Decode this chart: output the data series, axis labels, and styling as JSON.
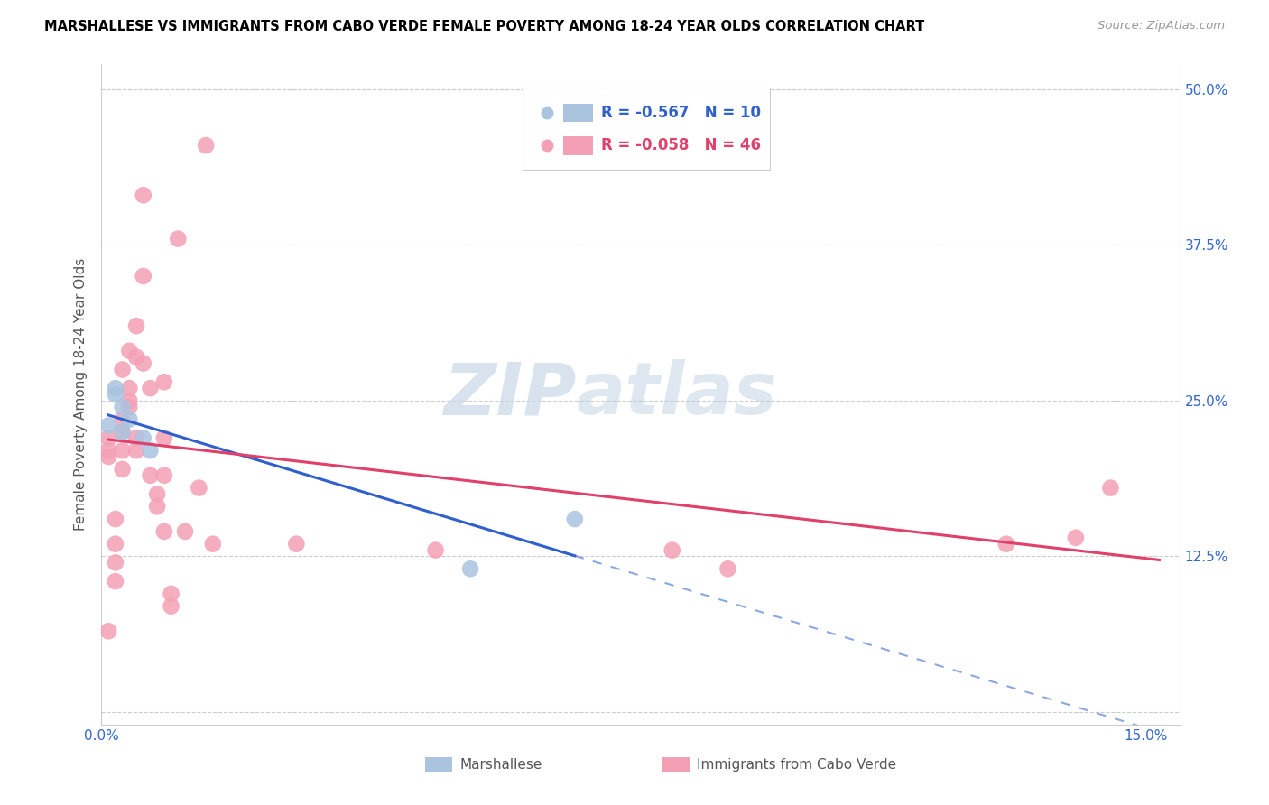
{
  "title": "MARSHALLESE VS IMMIGRANTS FROM CABO VERDE FEMALE POVERTY AMONG 18-24 YEAR OLDS CORRELATION CHART",
  "source": "Source: ZipAtlas.com",
  "ylabel": "Female Poverty Among 18-24 Year Olds",
  "xlim": [
    0.0,
    0.155
  ],
  "ylim": [
    -0.01,
    0.52
  ],
  "watermark_zip": "ZIP",
  "watermark_atlas": "atlas",
  "marshallese_color": "#aac4e0",
  "cabo_verde_color": "#f4a0b4",
  "marshallese_line_color": "#3060cc",
  "cabo_verde_line_color": "#e0406a",
  "marshallese_edge_color": "#7aaad0",
  "cabo_verde_edge_color": "#e080a0",
  "R_marshallese": -0.567,
  "N_marshallese": 10,
  "R_cabo_verde": -0.058,
  "N_cabo_verde": 46,
  "marshallese_x": [
    0.001,
    0.002,
    0.002,
    0.003,
    0.003,
    0.004,
    0.006,
    0.007,
    0.053,
    0.068
  ],
  "marshallese_y": [
    0.23,
    0.255,
    0.26,
    0.245,
    0.225,
    0.235,
    0.22,
    0.21,
    0.115,
    0.155
  ],
  "cabo_verde_x": [
    0.001,
    0.001,
    0.001,
    0.001,
    0.002,
    0.002,
    0.002,
    0.002,
    0.003,
    0.003,
    0.003,
    0.003,
    0.003,
    0.004,
    0.004,
    0.004,
    0.004,
    0.005,
    0.005,
    0.005,
    0.005,
    0.006,
    0.006,
    0.006,
    0.007,
    0.007,
    0.008,
    0.008,
    0.009,
    0.009,
    0.009,
    0.009,
    0.01,
    0.01,
    0.011,
    0.012,
    0.014,
    0.015,
    0.016,
    0.028,
    0.048,
    0.082,
    0.09,
    0.13,
    0.14,
    0.145
  ],
  "cabo_verde_y": [
    0.22,
    0.21,
    0.205,
    0.065,
    0.155,
    0.135,
    0.12,
    0.105,
    0.275,
    0.235,
    0.225,
    0.21,
    0.195,
    0.29,
    0.26,
    0.25,
    0.245,
    0.31,
    0.285,
    0.22,
    0.21,
    0.415,
    0.35,
    0.28,
    0.26,
    0.19,
    0.175,
    0.165,
    0.265,
    0.22,
    0.19,
    0.145,
    0.095,
    0.085,
    0.38,
    0.145,
    0.18,
    0.455,
    0.135,
    0.135,
    0.13,
    0.13,
    0.115,
    0.135,
    0.14,
    0.18
  ],
  "grid_color": "#cccccc",
  "grid_yticks": [
    0.0,
    0.125,
    0.25,
    0.375,
    0.5
  ]
}
